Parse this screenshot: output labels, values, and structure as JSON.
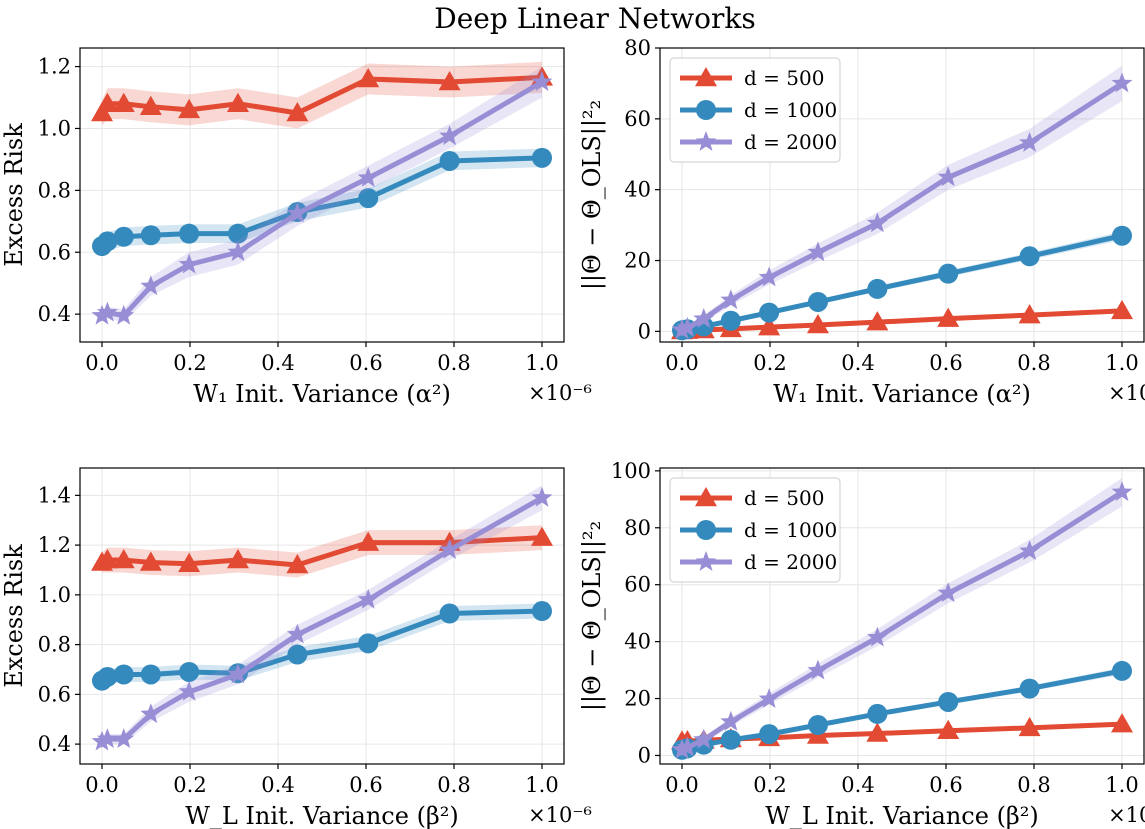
{
  "figure": {
    "title": "Deep Linear Networks",
    "x_multiplier": "×10⁻⁶"
  },
  "colors": {
    "d500": "#e24a33",
    "d1000": "#348abd",
    "d2000": "#988ed5"
  },
  "chart_data": [
    {
      "type": "line",
      "panel": "top-left",
      "xlabel": "W₁ Init. Variance (α²)",
      "ylabel": "Excess Risk",
      "xlim": [
        -0.05,
        1.05
      ],
      "ylim": [
        0.31,
        1.26
      ],
      "xticks": [
        0.0,
        0.2,
        0.4,
        0.6,
        0.8,
        1.0
      ],
      "yticks": [
        0.4,
        0.6,
        0.8,
        1.0,
        1.2
      ],
      "legend": null,
      "grid": true,
      "x": [
        0.0,
        0.0123,
        0.0494,
        0.111,
        0.198,
        0.309,
        0.444,
        0.605,
        0.79,
        1.0
      ],
      "series": [
        {
          "name": "d = 500",
          "marker": "triangle",
          "values": [
            1.05,
            1.08,
            1.08,
            1.07,
            1.06,
            1.08,
            1.05,
            1.16,
            1.15,
            1.165
          ],
          "band": [
            0.04,
            0.05,
            0.05,
            0.05,
            0.05,
            0.05,
            0.05,
            0.05,
            0.05,
            0.05
          ]
        },
        {
          "name": "d = 1000",
          "marker": "circle",
          "values": [
            0.62,
            0.635,
            0.65,
            0.655,
            0.66,
            0.66,
            0.73,
            0.775,
            0.895,
            0.905
          ],
          "band": [
            0.025,
            0.03,
            0.03,
            0.03,
            0.03,
            0.03,
            0.03,
            0.03,
            0.03,
            0.03
          ]
        },
        {
          "name": "d = 2000",
          "marker": "star",
          "values": [
            0.395,
            0.405,
            0.395,
            0.49,
            0.56,
            0.6,
            0.725,
            0.84,
            0.975,
            1.15
          ],
          "band": [
            0.02,
            0.02,
            0.02,
            0.03,
            0.04,
            0.04,
            0.04,
            0.04,
            0.04,
            0.05
          ]
        }
      ]
    },
    {
      "type": "line",
      "panel": "top-right",
      "xlabel": "W₁ Init. Variance (α²)",
      "ylabel": "||Θ − Θ_OLS||²₂",
      "xlim": [
        -0.05,
        1.05
      ],
      "ylim": [
        -3,
        80
      ],
      "xticks": [
        0.0,
        0.2,
        0.4,
        0.6,
        0.8,
        1.0
      ],
      "yticks": [
        0,
        20,
        40,
        60,
        80
      ],
      "legend": "top-left",
      "grid": true,
      "x": [
        0.0,
        0.0123,
        0.0494,
        0.111,
        0.198,
        0.309,
        0.444,
        0.605,
        0.79,
        1.0
      ],
      "series": [
        {
          "name": "d = 500",
          "marker": "triangle",
          "values": [
            0.1,
            0.2,
            0.4,
            0.7,
            1.2,
            1.8,
            2.6,
            3.6,
            4.6,
            5.8
          ],
          "band": [
            0.2,
            0.2,
            0.2,
            0.3,
            0.3,
            0.3,
            0.4,
            0.4,
            0.5,
            0.5
          ]
        },
        {
          "name": "d = 1000",
          "marker": "circle",
          "values": [
            0.3,
            0.6,
            1.4,
            3.0,
            5.3,
            8.3,
            12.0,
            16.3,
            21.2,
            27.0
          ],
          "band": [
            0.3,
            0.3,
            0.4,
            0.5,
            0.6,
            0.7,
            0.8,
            0.9,
            1.0,
            1.2
          ]
        },
        {
          "name": "d = 2000",
          "marker": "star",
          "values": [
            0.4,
            1.0,
            3.5,
            8.8,
            15.2,
            22.3,
            30.5,
            43.5,
            53.2,
            70.0
          ],
          "band": [
            0.5,
            0.6,
            1.0,
            1.5,
            2.0,
            2.5,
            3.0,
            3.5,
            4.0,
            5.0
          ]
        }
      ]
    },
    {
      "type": "line",
      "panel": "bottom-left",
      "xlabel": "W_L Init. Variance (β²)",
      "ylabel": "Excess Risk",
      "xlim": [
        -0.05,
        1.05
      ],
      "ylim": [
        0.32,
        1.51
      ],
      "xticks": [
        0.0,
        0.2,
        0.4,
        0.6,
        0.8,
        1.0
      ],
      "yticks": [
        0.4,
        0.6,
        0.8,
        1.0,
        1.2,
        1.4
      ],
      "legend": null,
      "grid": true,
      "x": [
        0.0,
        0.0123,
        0.0494,
        0.111,
        0.198,
        0.309,
        0.444,
        0.605,
        0.79,
        1.0
      ],
      "series": [
        {
          "name": "d = 500",
          "marker": "triangle",
          "values": [
            1.13,
            1.14,
            1.14,
            1.13,
            1.125,
            1.14,
            1.12,
            1.21,
            1.21,
            1.23
          ],
          "band": [
            0.04,
            0.05,
            0.05,
            0.05,
            0.05,
            0.05,
            0.05,
            0.05,
            0.05,
            0.05
          ]
        },
        {
          "name": "d = 1000",
          "marker": "circle",
          "values": [
            0.655,
            0.67,
            0.68,
            0.68,
            0.69,
            0.685,
            0.76,
            0.805,
            0.925,
            0.935
          ],
          "band": [
            0.025,
            0.03,
            0.03,
            0.03,
            0.03,
            0.03,
            0.03,
            0.03,
            0.03,
            0.03
          ]
        },
        {
          "name": "d = 2000",
          "marker": "star",
          "values": [
            0.41,
            0.42,
            0.42,
            0.52,
            0.61,
            0.68,
            0.84,
            0.98,
            1.18,
            1.39
          ],
          "band": [
            0.02,
            0.02,
            0.02,
            0.03,
            0.04,
            0.04,
            0.04,
            0.04,
            0.04,
            0.05
          ]
        }
      ]
    },
    {
      "type": "line",
      "panel": "bottom-right",
      "xlabel": "W_L Init. Variance (β²)",
      "ylabel": "||Θ − Θ_OLS||²₂",
      "xlim": [
        -0.05,
        1.05
      ],
      "ylim": [
        -3,
        101
      ],
      "xticks": [
        0.0,
        0.2,
        0.4,
        0.6,
        0.8,
        1.0
      ],
      "yticks": [
        0,
        20,
        40,
        60,
        80,
        100
      ],
      "legend": "top-left",
      "grid": true,
      "x": [
        0.0,
        0.0123,
        0.0494,
        0.111,
        0.198,
        0.309,
        0.444,
        0.605,
        0.79,
        1.0
      ],
      "series": [
        {
          "name": "d = 500",
          "marker": "triangle",
          "values": [
            5.0,
            5.1,
            5.3,
            5.8,
            6.2,
            7.0,
            7.7,
            8.7,
            9.7,
            11.0
          ],
          "band": [
            0.3,
            0.3,
            0.3,
            0.4,
            0.4,
            0.4,
            0.5,
            0.5,
            0.6,
            0.6
          ]
        },
        {
          "name": "d = 1000",
          "marker": "circle",
          "values": [
            2.0,
            2.5,
            3.8,
            5.5,
            7.5,
            10.7,
            14.6,
            18.8,
            23.5,
            29.7
          ],
          "band": [
            0.3,
            0.3,
            0.4,
            0.5,
            0.6,
            0.7,
            0.8,
            0.9,
            1.0,
            1.2
          ]
        },
        {
          "name": "d = 2000",
          "marker": "star",
          "values": [
            2.0,
            2.8,
            5.5,
            11.8,
            19.8,
            29.8,
            41.4,
            57.0,
            71.8,
            92.5
          ],
          "band": [
            0.5,
            0.6,
            1.0,
            1.5,
            2.0,
            2.5,
            3.0,
            3.5,
            4.0,
            5.0
          ]
        }
      ]
    }
  ]
}
